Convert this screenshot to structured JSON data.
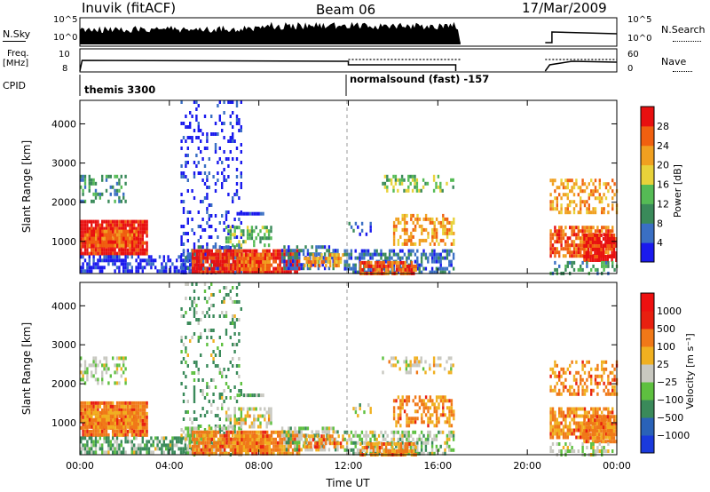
{
  "header": {
    "station": "Inuvik (fitACF)",
    "beam": "Beam 06",
    "date": "17/Mar/2009"
  },
  "panels": {
    "nsky": {
      "label": "N.Sky",
      "ticks": [
        "10^5",
        "10^0"
      ],
      "right_label": "N.Search",
      "right_ticks": [
        "10^5",
        "10^0"
      ]
    },
    "freq": {
      "label_line1": "Freq.",
      "label_line2": "[MHz]",
      "ticks": [
        "10",
        "8"
      ],
      "right_label": "Nave",
      "right_ticks": [
        "60",
        "0"
      ]
    },
    "cpid": {
      "label": "CPID",
      "modes": [
        "themis 3300",
        "normalsound (fast) -157"
      ]
    }
  },
  "chart_data": [
    {
      "type": "heatmap",
      "name": "power",
      "ylabel": "Slant Range [km]",
      "xlabel": "",
      "ylim": [
        180,
        4600
      ],
      "xlim": [
        0,
        24
      ],
      "yticks": [
        "1000",
        "2000",
        "3000",
        "4000"
      ],
      "colorbar": {
        "label": "Power [dB]",
        "ticks": [
          "4",
          "8",
          "12",
          "16",
          "20",
          "24",
          "28"
        ],
        "colors": [
          "#1a1aee",
          "#3a6fc4",
          "#3a8a5a",
          "#55bb55",
          "#e8d23a",
          "#f0a020",
          "#f06010",
          "#e81010"
        ]
      }
    },
    {
      "type": "heatmap",
      "name": "velocity",
      "ylabel": "Slant Range [km]",
      "xlabel": "Time UT",
      "ylim": [
        180,
        4600
      ],
      "xlim": [
        0,
        24
      ],
      "yticks": [
        "1000",
        "2000",
        "3000",
        "4000"
      ],
      "xticks": [
        "00:00",
        "04:00",
        "08:00",
        "12:00",
        "16:00",
        "20:00",
        "00:00"
      ],
      "colorbar": {
        "label": "Velocity [m s⁻¹]",
        "ticks": [
          "1000",
          "500",
          "100",
          "25",
          "−25",
          "−100",
          "−500",
          "−1000"
        ],
        "colors": [
          "#1a3adc",
          "#2a62b8",
          "#3a8a5a",
          "#5ec040",
          "#c8c8c0",
          "#f0b020",
          "#f07818",
          "#e82010",
          "#ee1010"
        ]
      }
    }
  ]
}
